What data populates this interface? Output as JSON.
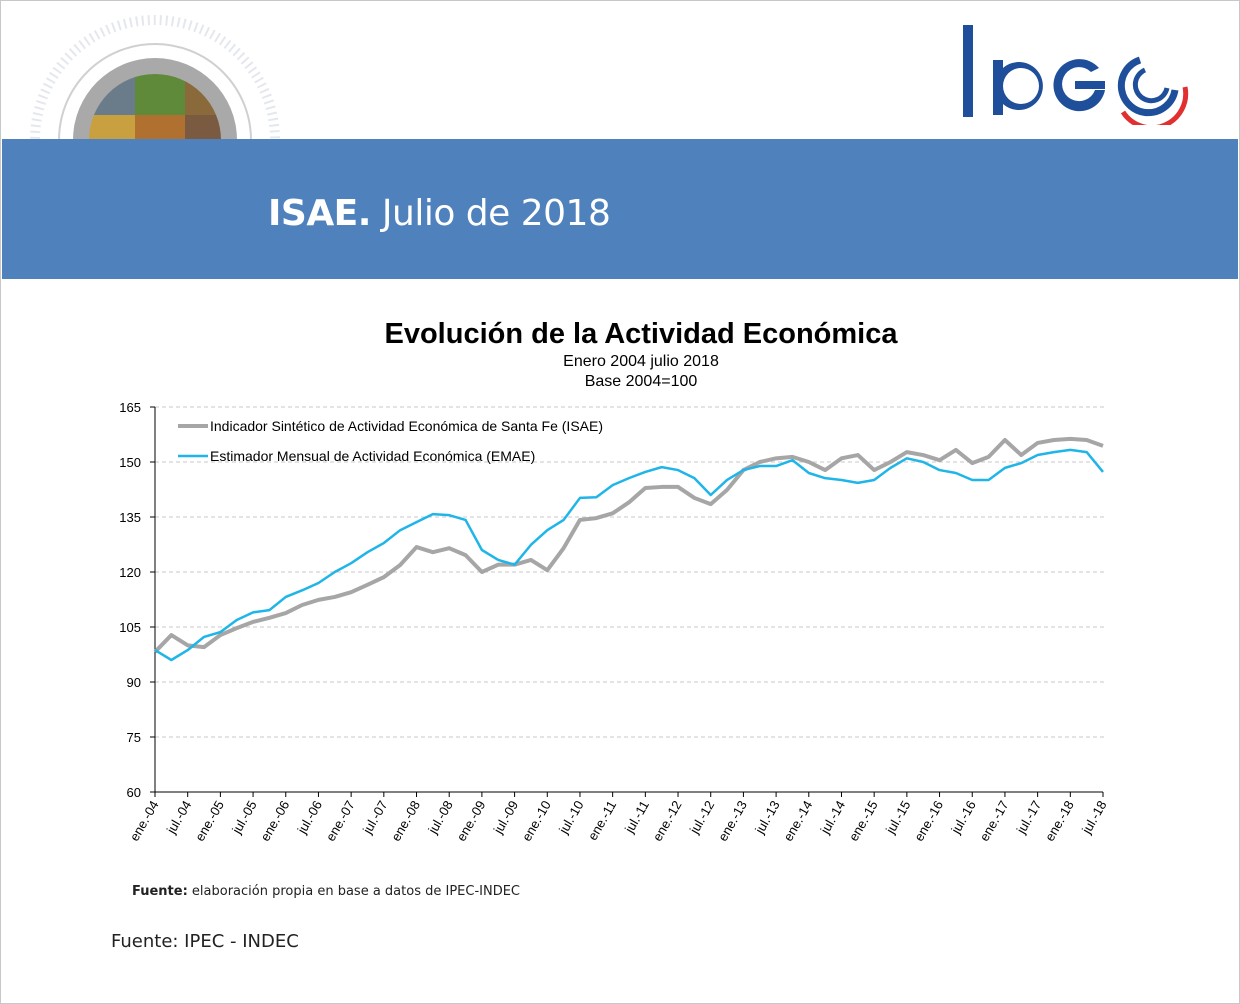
{
  "header": {
    "title_bold": "ISAE.",
    "title_rest": " Julio de 2018",
    "logo_text": "IPEC"
  },
  "colors": {
    "band": "#4f81bd",
    "isae": "#a6a6a6",
    "emae": "#1fb5e8",
    "logo_blue": "#1f4e9a",
    "logo_red": "#e03030"
  },
  "chart_data": {
    "type": "line",
    "title": "Evolución de la Actividad Económica",
    "subtitle": [
      "Enero 2004 julio 2018",
      "Base 2004=100"
    ],
    "xlabel": "",
    "ylabel": "",
    "ylim": [
      60,
      165
    ],
    "yticks": [
      60,
      75,
      90,
      105,
      120,
      135,
      150,
      165
    ],
    "grid": true,
    "legend_position": "top-left",
    "x_frequency": "quarterly (ene, abr, jul, oct), ene-04 to jul-18",
    "xtick_labels": [
      "ene.-04",
      "jul.-04",
      "ene.-05",
      "jul.-05",
      "ene.-06",
      "jul.-06",
      "ene.-07",
      "jul.-07",
      "ene.-08",
      "jul.-08",
      "ene.-09",
      "jul.-09",
      "ene.-10",
      "jul.-10",
      "ene.-11",
      "jul.-11",
      "ene.-12",
      "jul.-12",
      "ene.-13",
      "jul.-13",
      "ene.-14",
      "jul.-14",
      "ene.-15",
      "jul.-15",
      "ene.-16",
      "jul.-16",
      "ene.-17",
      "jul.-17",
      "ene.-18",
      "jul.-18"
    ],
    "series": [
      {
        "name": "Indicador Sintético de Actividad Económica de Santa Fe (ISAE)",
        "values": [
          98.2,
          102.8,
          100,
          99.5,
          102.8,
          104.7,
          106.4,
          107.5,
          108.8,
          111,
          112.4,
          113.2,
          114.5,
          116.5,
          118.6,
          121.9,
          126.8,
          125.4,
          126.5,
          124.6,
          120,
          122,
          122,
          123.3,
          120.5,
          126.5,
          134.2,
          134.7,
          136,
          139,
          142.9,
          143.2,
          143.2,
          140.2,
          138.5,
          142.4,
          147.8,
          150,
          151,
          151.4,
          150,
          147.8,
          151,
          151.9,
          147.8,
          150,
          152.7,
          151.9,
          150.5,
          153.3,
          149.7,
          151.4,
          156,
          151.9,
          155.2,
          156,
          156.3,
          156,
          154.4
        ]
      },
      {
        "name": "Estimador Mensual de Actividad Económica (EMAE)",
        "values": [
          98.7,
          96,
          98.7,
          102.3,
          103.6,
          106.9,
          109,
          109.6,
          113.2,
          115,
          117,
          120,
          122.4,
          125.4,
          127.9,
          131.4,
          133.6,
          135.8,
          135.5,
          134.2,
          126,
          123.3,
          122,
          127.4,
          131.4,
          134.2,
          140.2,
          140.4,
          143.7,
          145.6,
          147.3,
          148.6,
          147.8,
          145.6,
          141,
          145.1,
          147.8,
          148.9,
          148.9,
          150.5,
          147,
          145.6,
          145.1,
          144.3,
          145.1,
          148.4,
          151,
          150,
          147.8,
          147,
          145.1,
          145.1,
          148.4,
          149.7,
          151.9,
          152.7,
          153.3,
          152.7,
          147.3
        ]
      }
    ]
  },
  "footer": {
    "source_bold": "Fuente:",
    "source_text": " elaboración propia en base a datos de IPEC-INDEC",
    "source2": "Fuente: IPEC - INDEC"
  }
}
